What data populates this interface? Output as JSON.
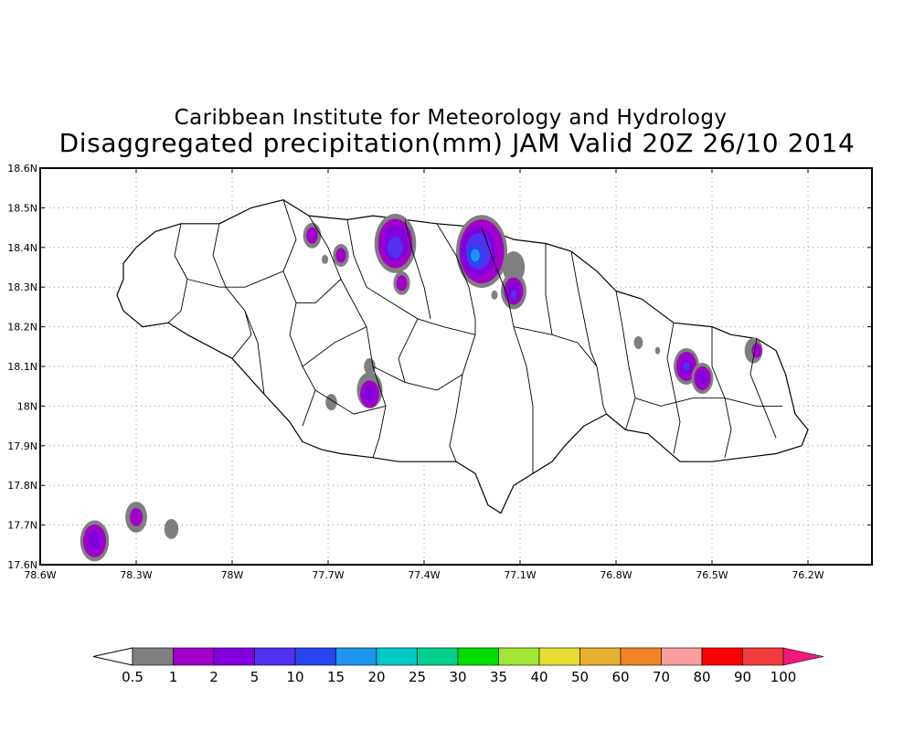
{
  "title": {
    "line1": "Caribbean Institute for Meteorology and Hydrology",
    "line2": "Disaggregated precipitation(mm) JAM Valid 20Z 26/10 2014"
  },
  "map": {
    "lon_range": [
      -78.6,
      -76.0
    ],
    "lat_range": [
      17.6,
      18.6
    ],
    "x_ticks": [
      {
        "lon": -78.6,
        "label": "78.6W"
      },
      {
        "lon": -78.3,
        "label": "78.3W"
      },
      {
        "lon": -78.0,
        "label": "78W"
      },
      {
        "lon": -77.7,
        "label": "77.7W"
      },
      {
        "lon": -77.4,
        "label": "77.4W"
      },
      {
        "lon": -77.1,
        "label": "77.1W"
      },
      {
        "lon": -76.8,
        "label": "76.8W"
      },
      {
        "lon": -76.5,
        "label": "76.5W"
      },
      {
        "lon": -76.2,
        "label": "76.2W"
      }
    ],
    "y_ticks": [
      {
        "lat": 17.6,
        "label": "17.6N"
      },
      {
        "lat": 17.7,
        "label": "17.7N"
      },
      {
        "lat": 17.8,
        "label": "17.8N"
      },
      {
        "lat": 17.9,
        "label": "17.9N"
      },
      {
        "lat": 18.0,
        "label": "18N"
      },
      {
        "lat": 18.1,
        "label": "18.1N"
      },
      {
        "lat": 18.2,
        "label": "18.2N"
      },
      {
        "lat": 18.3,
        "label": "18.3N"
      },
      {
        "lat": 18.4,
        "label": "18.4N"
      },
      {
        "lat": 18.5,
        "label": "18.5N"
      },
      {
        "lat": 18.6,
        "label": "18.6N"
      }
    ],
    "grid": true,
    "island_outline": [
      [
        -78.34,
        18.36
      ],
      [
        -78.3,
        18.4
      ],
      [
        -78.24,
        18.44
      ],
      [
        -78.16,
        18.46
      ],
      [
        -78.04,
        18.46
      ],
      [
        -77.94,
        18.5
      ],
      [
        -77.84,
        18.52
      ],
      [
        -77.76,
        18.48
      ],
      [
        -77.64,
        18.47
      ],
      [
        -77.56,
        18.48
      ],
      [
        -77.46,
        18.47
      ],
      [
        -77.36,
        18.46
      ],
      [
        -77.22,
        18.45
      ],
      [
        -77.12,
        18.42
      ],
      [
        -77.02,
        18.41
      ],
      [
        -76.94,
        18.39
      ],
      [
        -76.86,
        18.34
      ],
      [
        -76.8,
        18.29
      ],
      [
        -76.72,
        18.27
      ],
      [
        -76.62,
        18.21
      ],
      [
        -76.5,
        18.2
      ],
      [
        -76.44,
        18.18
      ],
      [
        -76.36,
        18.17
      ],
      [
        -76.3,
        18.14
      ],
      [
        -76.27,
        18.08
      ],
      [
        -76.24,
        17.98
      ],
      [
        -76.2,
        17.94
      ],
      [
        -76.22,
        17.9
      ],
      [
        -76.3,
        17.88
      ],
      [
        -76.4,
        17.87
      ],
      [
        -76.5,
        17.86
      ],
      [
        -76.6,
        17.86
      ],
      [
        -76.7,
        17.93
      ],
      [
        -76.77,
        17.94
      ],
      [
        -76.83,
        17.98
      ],
      [
        -76.9,
        17.95
      ],
      [
        -76.96,
        17.9
      ],
      [
        -77.0,
        17.86
      ],
      [
        -77.06,
        17.83
      ],
      [
        -77.12,
        17.8
      ],
      [
        -77.16,
        17.73
      ],
      [
        -77.2,
        17.75
      ],
      [
        -77.24,
        17.83
      ],
      [
        -77.3,
        17.86
      ],
      [
        -77.38,
        17.86
      ],
      [
        -77.48,
        17.86
      ],
      [
        -77.56,
        17.87
      ],
      [
        -77.66,
        17.88
      ],
      [
        -77.72,
        17.89
      ],
      [
        -77.78,
        17.91
      ],
      [
        -77.82,
        17.96
      ],
      [
        -77.9,
        18.03
      ],
      [
        -78.0,
        18.12
      ],
      [
        -78.14,
        18.18
      ],
      [
        -78.2,
        18.21
      ],
      [
        -78.28,
        18.2
      ],
      [
        -78.34,
        18.24
      ],
      [
        -78.36,
        18.28
      ],
      [
        -78.34,
        18.32
      ],
      [
        -78.34,
        18.36
      ]
    ],
    "parish_lines": [
      [
        [
          -78.16,
          18.46
        ],
        [
          -78.18,
          18.38
        ],
        [
          -78.14,
          18.32
        ],
        [
          -78.16,
          18.24
        ],
        [
          -78.2,
          18.21
        ]
      ],
      [
        [
          -78.04,
          18.46
        ],
        [
          -78.06,
          18.38
        ],
        [
          -78.02,
          18.3
        ],
        [
          -77.96,
          18.24
        ],
        [
          -77.92,
          18.16
        ],
        [
          -77.9,
          18.03
        ]
      ],
      [
        [
          -77.84,
          18.52
        ],
        [
          -77.8,
          18.42
        ],
        [
          -77.84,
          18.34
        ],
        [
          -77.8,
          18.26
        ],
        [
          -77.82,
          18.18
        ],
        [
          -77.78,
          18.1
        ],
        [
          -77.74,
          18.04
        ],
        [
          -77.78,
          17.95
        ]
      ],
      [
        [
          -77.76,
          18.48
        ],
        [
          -77.7,
          18.4
        ],
        [
          -77.66,
          18.32
        ],
        [
          -77.62,
          18.26
        ],
        [
          -77.58,
          18.2
        ],
        [
          -77.56,
          18.1
        ],
        [
          -77.52,
          18.0
        ],
        [
          -77.54,
          17.92
        ],
        [
          -77.56,
          17.87
        ]
      ],
      [
        [
          -77.64,
          18.47
        ],
        [
          -77.62,
          18.38
        ],
        [
          -77.58,
          18.3
        ],
        [
          -77.5,
          18.26
        ],
        [
          -77.42,
          18.22
        ],
        [
          -77.34,
          18.2
        ],
        [
          -77.24,
          18.18
        ]
      ],
      [
        [
          -77.46,
          18.47
        ],
        [
          -77.44,
          18.4
        ],
        [
          -77.4,
          18.3
        ],
        [
          -77.38,
          18.22
        ]
      ],
      [
        [
          -77.36,
          18.46
        ],
        [
          -77.3,
          18.38
        ],
        [
          -77.26,
          18.3
        ],
        [
          -77.24,
          18.22
        ],
        [
          -77.24,
          18.18
        ]
      ],
      [
        [
          -77.22,
          18.45
        ],
        [
          -77.18,
          18.36
        ],
        [
          -77.14,
          18.28
        ],
        [
          -77.12,
          18.2
        ],
        [
          -77.08,
          18.1
        ],
        [
          -77.06,
          18.0
        ],
        [
          -77.06,
          17.9
        ],
        [
          -77.06,
          17.83
        ]
      ],
      [
        [
          -77.24,
          18.18
        ],
        [
          -77.28,
          18.08
        ],
        [
          -77.3,
          17.98
        ],
        [
          -77.32,
          17.9
        ],
        [
          -77.3,
          17.86
        ]
      ],
      [
        [
          -77.56,
          18.1
        ],
        [
          -77.46,
          18.06
        ],
        [
          -77.36,
          18.04
        ],
        [
          -77.28,
          18.08
        ]
      ],
      [
        [
          -77.12,
          18.2
        ],
        [
          -77.0,
          18.18
        ],
        [
          -76.92,
          18.16
        ],
        [
          -76.86,
          18.1
        ],
        [
          -76.84,
          18.0
        ],
        [
          -76.83,
          17.98
        ]
      ],
      [
        [
          -76.94,
          18.39
        ],
        [
          -76.92,
          18.3
        ],
        [
          -76.9,
          18.22
        ],
        [
          -76.88,
          18.14
        ],
        [
          -76.86,
          18.1
        ]
      ],
      [
        [
          -76.8,
          18.29
        ],
        [
          -76.78,
          18.2
        ],
        [
          -76.76,
          18.1
        ],
        [
          -76.74,
          18.02
        ],
        [
          -76.77,
          17.94
        ]
      ],
      [
        [
          -76.62,
          18.21
        ],
        [
          -76.64,
          18.12
        ],
        [
          -76.62,
          18.04
        ],
        [
          -76.6,
          17.96
        ],
        [
          -76.62,
          17.88
        ]
      ],
      [
        [
          -76.5,
          18.2
        ],
        [
          -76.5,
          18.1
        ],
        [
          -76.46,
          18.02
        ],
        [
          -76.44,
          17.94
        ],
        [
          -76.46,
          17.87
        ]
      ],
      [
        [
          -76.74,
          18.02
        ],
        [
          -76.66,
          18.0
        ],
        [
          -76.56,
          18.02
        ],
        [
          -76.46,
          18.02
        ],
        [
          -76.36,
          18.0
        ],
        [
          -76.28,
          18.0
        ]
      ],
      [
        [
          -76.36,
          18.17
        ],
        [
          -76.38,
          18.08
        ],
        [
          -76.34,
          18.0
        ],
        [
          -76.3,
          17.92
        ]
      ],
      [
        [
          -78.14,
          18.32
        ],
        [
          -78.04,
          18.3
        ],
        [
          -77.96,
          18.3
        ],
        [
          -77.84,
          18.34
        ]
      ],
      [
        [
          -77.66,
          18.32
        ],
        [
          -77.74,
          18.26
        ],
        [
          -77.8,
          18.26
        ]
      ],
      [
        [
          -77.58,
          18.2
        ],
        [
          -77.68,
          18.16
        ],
        [
          -77.78,
          18.1
        ]
      ],
      [
        [
          -77.42,
          18.22
        ],
        [
          -77.48,
          18.12
        ],
        [
          -77.46,
          18.06
        ]
      ],
      [
        [
          -77.0,
          18.18
        ],
        [
          -77.02,
          18.28
        ],
        [
          -77.02,
          18.41
        ]
      ],
      [
        [
          -77.52,
          18.0
        ],
        [
          -77.62,
          17.98
        ],
        [
          -77.74,
          18.04
        ]
      ],
      [
        [
          -78.0,
          18.12
        ],
        [
          -77.94,
          18.18
        ],
        [
          -77.96,
          18.24
        ]
      ]
    ],
    "precip_blobs": [
      {
        "lon": -77.75,
        "lat": 18.43,
        "r": 0.028,
        "level": 0.5
      },
      {
        "lon": -77.75,
        "lat": 18.43,
        "r": 0.018,
        "level": 1
      },
      {
        "lon": -77.66,
        "lat": 18.38,
        "r": 0.025,
        "level": 0.5
      },
      {
        "lon": -77.66,
        "lat": 18.38,
        "r": 0.016,
        "level": 1
      },
      {
        "lon": -77.71,
        "lat": 18.37,
        "r": 0.01,
        "level": 0.5
      },
      {
        "lon": -77.49,
        "lat": 18.41,
        "r": 0.065,
        "level": 0.5
      },
      {
        "lon": -77.49,
        "lat": 18.41,
        "r": 0.054,
        "level": 1
      },
      {
        "lon": -77.49,
        "lat": 18.41,
        "r": 0.04,
        "level": 2
      },
      {
        "lon": -77.49,
        "lat": 18.4,
        "r": 0.024,
        "level": 5
      },
      {
        "lon": -77.47,
        "lat": 18.31,
        "r": 0.026,
        "level": 0.5
      },
      {
        "lon": -77.47,
        "lat": 18.31,
        "r": 0.017,
        "level": 1
      },
      {
        "lon": -77.22,
        "lat": 18.39,
        "r": 0.08,
        "level": 0.5
      },
      {
        "lon": -77.22,
        "lat": 18.39,
        "r": 0.07,
        "level": 1
      },
      {
        "lon": -77.23,
        "lat": 18.39,
        "r": 0.055,
        "level": 2
      },
      {
        "lon": -77.23,
        "lat": 18.39,
        "r": 0.04,
        "level": 5
      },
      {
        "lon": -77.24,
        "lat": 18.38,
        "r": 0.026,
        "level": 10
      },
      {
        "lon": -77.24,
        "lat": 18.38,
        "r": 0.014,
        "level": 15
      },
      {
        "lon": -77.12,
        "lat": 18.35,
        "r": 0.035,
        "level": 0.5
      },
      {
        "lon": -77.12,
        "lat": 18.29,
        "r": 0.04,
        "level": 0.5
      },
      {
        "lon": -77.12,
        "lat": 18.29,
        "r": 0.03,
        "level": 1
      },
      {
        "lon": -77.12,
        "lat": 18.29,
        "r": 0.02,
        "level": 2
      },
      {
        "lon": -77.12,
        "lat": 18.28,
        "r": 0.01,
        "level": 5
      },
      {
        "lon": -77.18,
        "lat": 18.28,
        "r": 0.01,
        "level": 0.5
      },
      {
        "lon": -77.57,
        "lat": 18.04,
        "r": 0.04,
        "level": 0.5
      },
      {
        "lon": -77.57,
        "lat": 18.03,
        "r": 0.03,
        "level": 1
      },
      {
        "lon": -77.57,
        "lat": 18.03,
        "r": 0.018,
        "level": 2
      },
      {
        "lon": -77.57,
        "lat": 18.1,
        "r": 0.018,
        "level": 0.5
      },
      {
        "lon": -77.69,
        "lat": 18.01,
        "r": 0.018,
        "level": 0.5
      },
      {
        "lon": -76.73,
        "lat": 18.16,
        "r": 0.014,
        "level": 0.5
      },
      {
        "lon": -76.67,
        "lat": 18.14,
        "r": 0.008,
        "level": 0.5
      },
      {
        "lon": -76.58,
        "lat": 18.1,
        "r": 0.04,
        "level": 0.5
      },
      {
        "lon": -76.58,
        "lat": 18.1,
        "r": 0.032,
        "level": 1
      },
      {
        "lon": -76.58,
        "lat": 18.1,
        "r": 0.02,
        "level": 2
      },
      {
        "lon": -76.58,
        "lat": 18.1,
        "r": 0.01,
        "level": 5
      },
      {
        "lon": -76.53,
        "lat": 18.07,
        "r": 0.034,
        "level": 0.5
      },
      {
        "lon": -76.53,
        "lat": 18.07,
        "r": 0.026,
        "level": 1
      },
      {
        "lon": -76.53,
        "lat": 18.07,
        "r": 0.015,
        "level": 2
      },
      {
        "lon": -76.37,
        "lat": 18.14,
        "r": 0.028,
        "level": 0.5
      },
      {
        "lon": -76.36,
        "lat": 18.14,
        "r": 0.016,
        "level": 1
      },
      {
        "lon": -78.43,
        "lat": 17.66,
        "r": 0.045,
        "level": 0.5
      },
      {
        "lon": -78.43,
        "lat": 17.66,
        "r": 0.036,
        "level": 1
      },
      {
        "lon": -78.43,
        "lat": 17.66,
        "r": 0.022,
        "level": 2
      },
      {
        "lon": -78.3,
        "lat": 17.72,
        "r": 0.034,
        "level": 0.5
      },
      {
        "lon": -78.3,
        "lat": 17.72,
        "r": 0.02,
        "level": 1
      },
      {
        "lon": -78.19,
        "lat": 17.69,
        "r": 0.022,
        "level": 0.5
      }
    ]
  },
  "colorbar": {
    "labels": [
      "0.5",
      "1",
      "2",
      "5",
      "10",
      "15",
      "20",
      "25",
      "30",
      "35",
      "40",
      "50",
      "60",
      "70",
      "80",
      "90",
      "100"
    ],
    "colors": [
      "#7f7f7f",
      "#a000c8",
      "#8200dc",
      "#5032f0",
      "#2846f0",
      "#1e96f0",
      "#00c8c8",
      "#00d08c",
      "#00dc00",
      "#a0e632",
      "#e6dc32",
      "#e6af2d",
      "#f08228",
      "#fa9e9e",
      "#fa0000",
      "#f03c3c"
    ],
    "under_color": "#ffffff",
    "over_color": "#f0197d"
  }
}
